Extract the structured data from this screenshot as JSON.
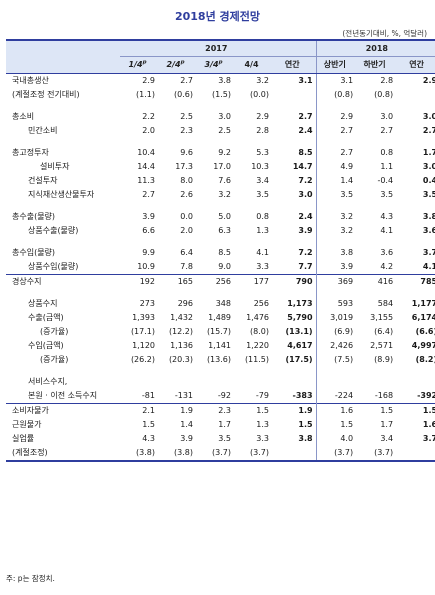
{
  "title": "2018년 경제전망",
  "unit": "(전년동기대비, %, 억달러)",
  "header": {
    "year2017": "2017",
    "year2018": "2018",
    "cols": [
      {
        "label": "1/4",
        "sup": "p"
      },
      {
        "label": "2/4",
        "sup": "p"
      },
      {
        "label": "3/4",
        "sup": "p"
      },
      {
        "label": "4/4",
        "sup": ""
      },
      {
        "label": "연간",
        "sup": ""
      },
      {
        "label": "상반기",
        "sup": ""
      },
      {
        "label": "하반기",
        "sup": ""
      },
      {
        "label": "연간",
        "sup": ""
      }
    ]
  },
  "rows": [
    {
      "label": "국내총생산",
      "level": 0,
      "vals": [
        "2.9",
        "2.7",
        "3.8",
        "3.2",
        "3.1",
        "3.1",
        "2.8",
        "2.9"
      ]
    },
    {
      "label": "(계절조정 전기대비)",
      "level": 0,
      "vals": [
        "(1.1)",
        "(0.6)",
        "(1.5)",
        "(0.0)",
        "",
        "(0.8)",
        "(0.8)",
        ""
      ]
    },
    {
      "spacer": true
    },
    {
      "label": "총소비",
      "level": 0,
      "vals": [
        "2.2",
        "2.5",
        "3.0",
        "2.9",
        "2.7",
        "2.9",
        "3.0",
        "3.0"
      ]
    },
    {
      "label": "민간소비",
      "level": 1,
      "vals": [
        "2.0",
        "2.3",
        "2.5",
        "2.8",
        "2.4",
        "2.7",
        "2.7",
        "2.7"
      ]
    },
    {
      "spacer": true
    },
    {
      "label": "총고정투자",
      "level": 0,
      "vals": [
        "10.4",
        "9.6",
        "9.2",
        "5.3",
        "8.5",
        "2.7",
        "0.8",
        "1.7"
      ]
    },
    {
      "label": "설비투자",
      "level": 2,
      "vals": [
        "14.4",
        "17.3",
        "17.0",
        "10.3",
        "14.7",
        "4.9",
        "1.1",
        "3.0"
      ]
    },
    {
      "label": "건설투자",
      "level": 1,
      "vals": [
        "11.3",
        "8.0",
        "7.6",
        "3.4",
        "7.2",
        "1.4",
        "-0.4",
        "0.4"
      ]
    },
    {
      "label": "지식재산생산물투자",
      "level": 1,
      "vals": [
        "2.7",
        "2.6",
        "3.2",
        "3.5",
        "3.0",
        "3.5",
        "3.5",
        "3.5"
      ]
    },
    {
      "spacer": true
    },
    {
      "label": "총수출(물량)",
      "level": 0,
      "vals": [
        "3.9",
        "0.0",
        "5.0",
        "0.8",
        "2.4",
        "3.2",
        "4.3",
        "3.8"
      ]
    },
    {
      "label": "상품수출(물량)",
      "level": 1,
      "vals": [
        "6.6",
        "2.0",
        "6.3",
        "1.3",
        "3.9",
        "3.2",
        "4.1",
        "3.6"
      ]
    },
    {
      "spacer": true
    },
    {
      "label": "총수입(물량)",
      "level": 0,
      "vals": [
        "9.9",
        "6.4",
        "8.5",
        "4.1",
        "7.2",
        "3.8",
        "3.6",
        "3.7"
      ]
    },
    {
      "label": "상품수입(물량)",
      "level": 1,
      "vals": [
        "10.9",
        "7.8",
        "9.0",
        "3.3",
        "7.7",
        "3.9",
        "4.2",
        "4.1"
      ]
    },
    {
      "label": "경상수지",
      "level": 0,
      "section": true,
      "vals": [
        "192",
        "165",
        "256",
        "177",
        "790",
        "369",
        "416",
        "785"
      ]
    },
    {
      "spacer": true
    },
    {
      "label": "상품수지",
      "level": 1,
      "vals": [
        "273",
        "296",
        "348",
        "256",
        "1,173",
        "593",
        "584",
        "1,177"
      ]
    },
    {
      "label": "수출(금액)",
      "level": 1,
      "vals": [
        "1,393",
        "1,432",
        "1,489",
        "1,476",
        "5,790",
        "3,019",
        "3,155",
        "6,174"
      ]
    },
    {
      "label": "(증가율)",
      "level": 2,
      "vals": [
        "(17.1)",
        "(12.2)",
        "(15.7)",
        "(8.0)",
        "(13.1)",
        "(6.9)",
        "(6.4)",
        "(6.6)"
      ]
    },
    {
      "label": "수입(금액)",
      "level": 1,
      "vals": [
        "1,120",
        "1,136",
        "1,141",
        "1,220",
        "4,617",
        "2,426",
        "2,571",
        "4,997"
      ]
    },
    {
      "label": "(증가율)",
      "level": 2,
      "vals": [
        "(26.2)",
        "(20.3)",
        "(13.6)",
        "(11.5)",
        "(17.5)",
        "(7.5)",
        "(8.9)",
        "(8.2)"
      ]
    },
    {
      "spacer": true
    },
    {
      "label": "서비스수지,",
      "level": 1,
      "vals": [
        "",
        "",
        "",
        "",
        "",
        "",
        "",
        ""
      ]
    },
    {
      "label": "본원 · 이전 소득수지",
      "level": 1,
      "vals": [
        "-81",
        "-131",
        "-92",
        "-79",
        "-383",
        "-224",
        "-168",
        "-392"
      ]
    },
    {
      "label": "소비자물가",
      "level": 0,
      "section": true,
      "vals": [
        "2.1",
        "1.9",
        "2.3",
        "1.5",
        "1.9",
        "1.6",
        "1.5",
        "1.5"
      ]
    },
    {
      "label": "근원물가",
      "level": 0,
      "vals": [
        "1.5",
        "1.4",
        "1.7",
        "1.3",
        "1.5",
        "1.5",
        "1.7",
        "1.6"
      ]
    },
    {
      "label": "실업률",
      "level": 0,
      "vals": [
        "4.3",
        "3.9",
        "3.5",
        "3.3",
        "3.8",
        "4.0",
        "3.4",
        "3.7"
      ]
    },
    {
      "label": "(계절조정)",
      "level": 0,
      "last": true,
      "vals": [
        "(3.8)",
        "(3.8)",
        "(3.7)",
        "(3.7)",
        "",
        "(3.7)",
        "(3.7)",
        ""
      ]
    }
  ],
  "footnote": "주: p는 잠정치."
}
